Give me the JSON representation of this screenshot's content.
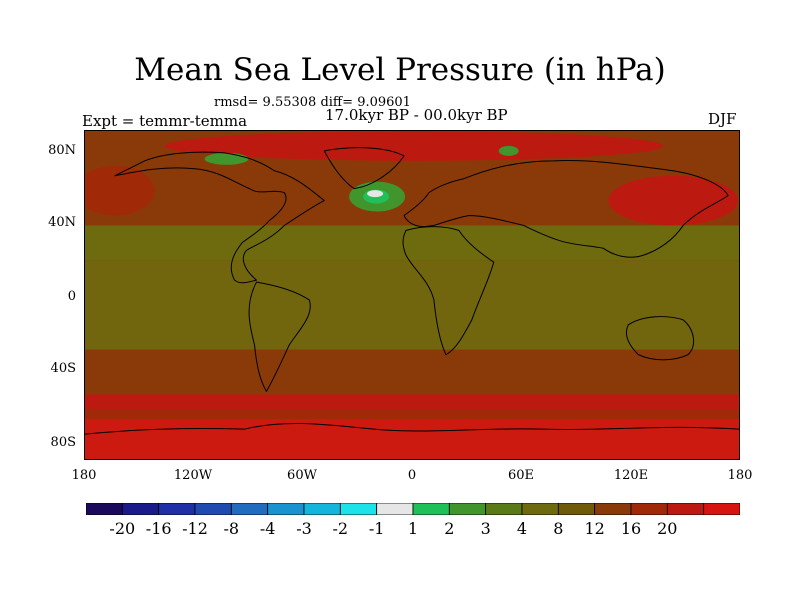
{
  "title": "Mean Sea Level Pressure (in hPa)",
  "stats": "rmsd= 9.55308 diff= 9.09601",
  "period": "17.0kyr BP - 00.0kyr BP",
  "experiment": "Expt = temmr-temma",
  "season": "DJF",
  "axes": {
    "y_ticks": [
      "80N",
      "40N",
      "0",
      "40S",
      "80S"
    ],
    "x_ticks": [
      "180",
      "120W",
      "60W",
      "0",
      "60E",
      "120E",
      "180"
    ]
  },
  "colorbar": {
    "colors": [
      "#1b0a5c",
      "#1a1a8a",
      "#1f2fa6",
      "#1f4bb0",
      "#1f6cc0",
      "#1a92cf",
      "#14b5dc",
      "#1ce3ea",
      "#e6e6e6",
      "#20c058",
      "#40962c",
      "#5a7a18",
      "#6e6a0e",
      "#6f5a0a",
      "#8a3a08",
      "#a02a08",
      "#bc1a10",
      "#d81410"
    ],
    "labels": [
      "-20",
      "-16",
      "-12",
      "-8",
      "-4",
      "-3",
      "-2",
      "-1",
      "1",
      "2",
      "3",
      "4",
      "8",
      "12",
      "16",
      "20"
    ]
  },
  "map_colors": {
    "olive": "#6e6a0e",
    "brown": "#8a3a08",
    "red": "#cc1a10",
    "green": "#40962c",
    "white": "#e6e6e6"
  }
}
